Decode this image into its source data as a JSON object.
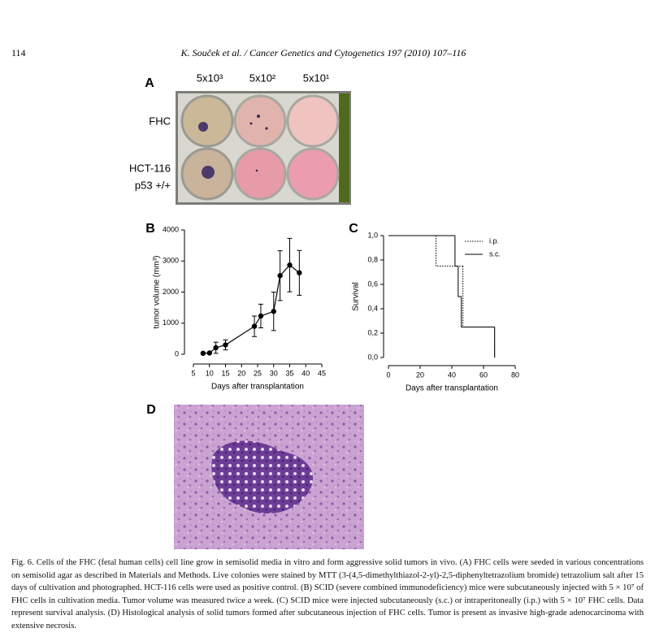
{
  "header": {
    "page_number": "114",
    "running_head": "K. Souček et al. / Cancer Genetics and Cytogenetics 197 (2010) 107–116"
  },
  "figure": {
    "panel_labels": [
      "A",
      "B",
      "C",
      "D"
    ],
    "panel_a": {
      "columns": [
        "5x10³",
        "5x10²",
        "5x10¹"
      ],
      "rows": [
        "FHC",
        "HCT-116",
        "p53 +/+"
      ]
    }
  },
  "chart_data": [
    {
      "type": "line",
      "x_label": "Days after transplantation",
      "y_label": "tumor volume (mm³)",
      "x": [
        8,
        10,
        12,
        15,
        24,
        26,
        30,
        32,
        35,
        38
      ],
      "series": [
        {
          "color": "#000000",
          "values": [
            30,
            40,
            210,
            300,
            900,
            1230,
            1380,
            2530,
            2870,
            2620
          ],
          "errors": [
            0,
            0,
            180,
            160,
            330,
            380,
            620,
            800,
            860,
            720
          ]
        }
      ],
      "xlim": [
        5,
        45
      ],
      "xticks": [
        5,
        10,
        15,
        20,
        25,
        30,
        35,
        40,
        45
      ],
      "ylim": [
        0,
        4000
      ],
      "yticks": [
        0,
        1000,
        2000,
        3000,
        4000
      ]
    },
    {
      "type": "step",
      "x_label": "Days after transplantation",
      "y_label": "Survival",
      "series": [
        {
          "name": "i.p.",
          "color": "#000000",
          "dash": "dotted",
          "x": [
            0,
            30,
            47,
            67
          ],
          "values": [
            1,
            0.75,
            0.25,
            0
          ]
        },
        {
          "name": "s.c.",
          "color": "#000000",
          "dash": "solid",
          "x": [
            0,
            42,
            44,
            46,
            67
          ],
          "values": [
            1,
            0.75,
            0.5,
            0.25,
            0
          ]
        }
      ],
      "xlim": [
        0,
        80
      ],
      "xticks": [
        0,
        20,
        40,
        60,
        80
      ],
      "ylim": [
        0,
        1
      ],
      "yticks": [
        {
          "value": 0,
          "label": "0,0"
        },
        {
          "value": 0.2,
          "label": "0,2"
        },
        {
          "value": 0.4,
          "label": "0,4"
        },
        {
          "value": 0.6,
          "label": "0,6"
        },
        {
          "value": 0.8,
          "label": "0,8"
        },
        {
          "value": 1,
          "label": "1,0"
        }
      ],
      "legend": "upper right"
    }
  ],
  "caption": "Fig. 6. Cells of the FHC (fetal human cells) cell line grow in semisolid media in vitro and form aggressive solid tumors in vivo. (A) FHC cells were seeded in various concentrations on semisolid agar as described in Materials and Methods. Live colonies were stained by MTT (3-(4,5-dimethylthiazol-2-yl)-2,5-diphenyltetrazolium bromide) tetrazolium salt after 15 days of cultivation and photographed. HCT-116 cells were used as positive control. (B) SCID (severe combined immunodeficiency) mice were subcutaneously injected with 5 × 10⁷ of FHC cells in cultivation media. Tumor volume was measured twice a week. (C) SCID mice were injected subcutaneously (s.c.) or intraperitoneally (i.p.) with 5 × 10⁷ FHC cells. Data represent survival analysis. (D) Histological analysis of solid tumors formed after subcutaneous injection of FHC cells. Tumor is present as invasive high-grade adenocarcinoma with extensive necrosis."
}
